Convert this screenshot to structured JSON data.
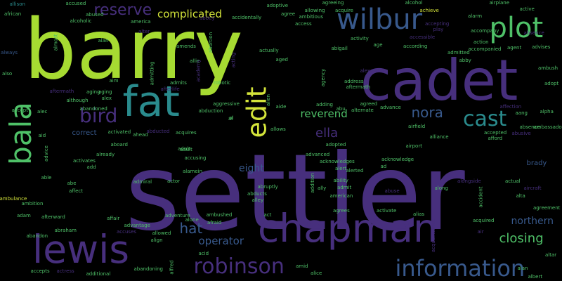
{
  "colors": {
    "background": "#000000",
    "lime": "#a6db32",
    "green": "#4fc168",
    "teal": "#2a8b8d",
    "blue": "#38598c",
    "purple": "#472f7d",
    "darkpurple": "#41205a",
    "yellow": "#d3e33a"
  },
  "words": [
    {
      "text": "barry",
      "color": "lime"
    },
    {
      "text": "settler",
      "color": "purple"
    },
    {
      "text": "cadet",
      "color": "purple"
    },
    {
      "text": "chapman",
      "color": "purple"
    },
    {
      "text": "lewis",
      "color": "purple"
    },
    {
      "text": "fat",
      "color": "teal"
    },
    {
      "text": "bala",
      "color": "green"
    },
    {
      "text": "wilbur",
      "color": "blue"
    },
    {
      "text": "plot",
      "color": "green"
    },
    {
      "text": "robinson",
      "color": "purple"
    },
    {
      "text": "information",
      "color": "blue"
    },
    {
      "text": "cast",
      "color": "teal"
    },
    {
      "text": "edit",
      "color": "yellow"
    },
    {
      "text": "bird",
      "color": "purple"
    },
    {
      "text": "reserve",
      "color": "purple"
    },
    {
      "text": "complicated",
      "color": "yellow"
    },
    {
      "text": "hat",
      "color": "blue"
    },
    {
      "text": "closing",
      "color": "green"
    },
    {
      "text": "nora",
      "color": "blue"
    },
    {
      "text": "ella",
      "color": "purple"
    },
    {
      "text": "reverend",
      "color": "green"
    },
    {
      "text": "operator",
      "color": "blue"
    },
    {
      "text": "northern",
      "color": "blue"
    },
    {
      "text": "eight",
      "color": "blue"
    },
    {
      "text": "brady",
      "color": "blue"
    },
    {
      "text": "allison",
      "color": "teal"
    },
    {
      "text": "african",
      "color": "green"
    },
    {
      "text": "accused",
      "color": "green"
    },
    {
      "text": "abused",
      "color": "green"
    },
    {
      "text": "alcoholic",
      "color": "green"
    },
    {
      "text": "alan",
      "color": "green"
    },
    {
      "text": "almost",
      "color": "green"
    },
    {
      "text": "always",
      "color": "blue"
    },
    {
      "text": "also",
      "color": "green"
    },
    {
      "text": "america",
      "color": "green"
    },
    {
      "text": "alter",
      "color": "purple"
    },
    {
      "text": "amends",
      "color": "green"
    },
    {
      "text": "allie",
      "color": "green"
    },
    {
      "text": "admitting",
      "color": "green"
    },
    {
      "text": "admits",
      "color": "green"
    },
    {
      "text": "academy",
      "color": "purple"
    },
    {
      "text": "abbey",
      "color": "purple"
    },
    {
      "text": "accidentally",
      "color": "green"
    },
    {
      "text": "abortion",
      "color": "green"
    },
    {
      "text": "acting",
      "color": "purple"
    },
    {
      "text": "actually",
      "color": "green"
    },
    {
      "text": "aged",
      "color": "green"
    },
    {
      "text": "adoptive",
      "color": "green"
    },
    {
      "text": "agree",
      "color": "green"
    },
    {
      "text": "allowing",
      "color": "green"
    },
    {
      "text": "ambitious",
      "color": "green"
    },
    {
      "text": "agreeing",
      "color": "green"
    },
    {
      "text": "acquire",
      "color": "green"
    },
    {
      "text": "access",
      "color": "green"
    },
    {
      "text": "abigail",
      "color": "green"
    },
    {
      "text": "activity",
      "color": "green"
    },
    {
      "text": "age",
      "color": "green"
    },
    {
      "text": "alcohol",
      "color": "green"
    },
    {
      "text": "achieve",
      "color": "yellow"
    },
    {
      "text": "accepting",
      "color": "purple"
    },
    {
      "text": "play",
      "color": "purple"
    },
    {
      "text": "alarm",
      "color": "green"
    },
    {
      "text": "airplane",
      "color": "green"
    },
    {
      "text": "active",
      "color": "green"
    },
    {
      "text": "accompany",
      "color": "green"
    },
    {
      "text": "absence",
      "color": "purple"
    },
    {
      "text": "according",
      "color": "green"
    },
    {
      "text": "admitted",
      "color": "green"
    },
    {
      "text": "action",
      "color": "green"
    },
    {
      "text": "accompanied",
      "color": "green"
    },
    {
      "text": "agent",
      "color": "green"
    },
    {
      "text": "advises",
      "color": "green"
    },
    {
      "text": "abby",
      "color": "green"
    },
    {
      "text": "ambush",
      "color": "green"
    },
    {
      "text": "adopt",
      "color": "green"
    },
    {
      "text": "afterlife",
      "color": "purple"
    },
    {
      "text": "aim",
      "color": "green"
    },
    {
      "text": "aftermath",
      "color": "purple"
    },
    {
      "text": "aging",
      "color": "green"
    },
    {
      "text": "alex",
      "color": "green"
    },
    {
      "text": "although",
      "color": "green"
    },
    {
      "text": "abandoned",
      "color": "green"
    },
    {
      "text": "accept",
      "color": "green"
    },
    {
      "text": "alec",
      "color": "green"
    },
    {
      "text": "aid",
      "color": "green"
    },
    {
      "text": "correct",
      "color": "blue"
    },
    {
      "text": "activated",
      "color": "green"
    },
    {
      "text": "ahead",
      "color": "green"
    },
    {
      "text": "abducted",
      "color": "purple"
    },
    {
      "text": "acquires",
      "color": "green"
    },
    {
      "text": "aboard",
      "color": "green"
    },
    {
      "text": "already",
      "color": "green"
    },
    {
      "text": "advice",
      "color": "green"
    },
    {
      "text": "able",
      "color": "green"
    },
    {
      "text": "activates",
      "color": "green"
    },
    {
      "text": "add",
      "color": "green"
    },
    {
      "text": "adult",
      "color": "green"
    },
    {
      "text": "accusing",
      "color": "green"
    },
    {
      "text": "alamein",
      "color": "green"
    },
    {
      "text": "abe",
      "color": "green"
    },
    {
      "text": "affect",
      "color": "green"
    },
    {
      "text": "admiral",
      "color": "green"
    },
    {
      "text": "actor",
      "color": "green"
    },
    {
      "text": "ambulance",
      "color": "yellow"
    },
    {
      "text": "ambition",
      "color": "green"
    },
    {
      "text": "adam",
      "color": "green"
    },
    {
      "text": "afterward",
      "color": "green"
    },
    {
      "text": "affair",
      "color": "green"
    },
    {
      "text": "advantage",
      "color": "green"
    },
    {
      "text": "accuses",
      "color": "purple"
    },
    {
      "text": "allowed",
      "color": "green"
    },
    {
      "text": "align",
      "color": "green"
    },
    {
      "text": "abraham",
      "color": "green"
    },
    {
      "text": "abandon",
      "color": "green"
    },
    {
      "text": "accepts",
      "color": "green"
    },
    {
      "text": "actress",
      "color": "purple"
    },
    {
      "text": "additional",
      "color": "green"
    },
    {
      "text": "abandoning",
      "color": "green"
    },
    {
      "text": "alfred",
      "color": "green"
    },
    {
      "text": "acid",
      "color": "green"
    },
    {
      "text": "alone",
      "color": "green"
    },
    {
      "text": "ambushed",
      "color": "green"
    },
    {
      "text": "afraid",
      "color": "green"
    },
    {
      "text": "adventure",
      "color": "green"
    },
    {
      "text": "robotic",
      "color": "green"
    },
    {
      "text": "abduction",
      "color": "green"
    },
    {
      "text": "aggressive",
      "color": "green"
    },
    {
      "text": "al",
      "color": "green"
    },
    {
      "text": "alien",
      "color": "green"
    },
    {
      "text": "aide",
      "color": "green"
    },
    {
      "text": "adding",
      "color": "green"
    },
    {
      "text": "allows",
      "color": "green"
    },
    {
      "text": "alternate",
      "color": "green"
    },
    {
      "text": "agreed",
      "color": "green"
    },
    {
      "text": "advance",
      "color": "green"
    },
    {
      "text": "abu",
      "color": "green"
    },
    {
      "text": "address",
      "color": "green"
    },
    {
      "text": "aftermath",
      "color": "green"
    },
    {
      "text": "agency",
      "color": "green"
    },
    {
      "text": "alexander",
      "color": "purple"
    },
    {
      "text": "advanced",
      "color": "green"
    },
    {
      "text": "acknowledges",
      "color": "green"
    },
    {
      "text": "adopted",
      "color": "green"
    },
    {
      "text": "alert",
      "color": "green"
    },
    {
      "text": "alerted",
      "color": "green"
    },
    {
      "text": "ad",
      "color": "green"
    },
    {
      "text": "acknowledge",
      "color": "green"
    },
    {
      "text": "addition",
      "color": "green"
    },
    {
      "text": "ability",
      "color": "green"
    },
    {
      "text": "admit",
      "color": "green"
    },
    {
      "text": "american",
      "color": "green"
    },
    {
      "text": "abruptly",
      "color": "green"
    },
    {
      "text": "abducts",
      "color": "green"
    },
    {
      "text": "alley",
      "color": "green"
    },
    {
      "text": "ally",
      "color": "green"
    },
    {
      "text": "agrees",
      "color": "green"
    },
    {
      "text": "activate",
      "color": "green"
    },
    {
      "text": "act",
      "color": "green"
    },
    {
      "text": "amid",
      "color": "green"
    },
    {
      "text": "alice",
      "color": "green"
    },
    {
      "text": "abuse",
      "color": "purple"
    },
    {
      "text": "airfield",
      "color": "green"
    },
    {
      "text": "airport",
      "color": "green"
    },
    {
      "text": "alliance",
      "color": "green"
    },
    {
      "text": "along",
      "color": "green"
    },
    {
      "text": "alias",
      "color": "green"
    },
    {
      "text": "acquaintance",
      "color": "purple"
    },
    {
      "text": "accident",
      "color": "green"
    },
    {
      "text": "acquired",
      "color": "green"
    },
    {
      "text": "air",
      "color": "purple"
    },
    {
      "text": "alongside",
      "color": "purple"
    },
    {
      "text": "actual",
      "color": "green"
    },
    {
      "text": "aircraft",
      "color": "purple"
    },
    {
      "text": "agreement",
      "color": "green"
    },
    {
      "text": "alpha",
      "color": "green"
    },
    {
      "text": "aang",
      "color": "green"
    },
    {
      "text": "affection",
      "color": "purple"
    },
    {
      "text": "abusive",
      "color": "purple"
    },
    {
      "text": "ambassador",
      "color": "green"
    },
    {
      "text": "absence",
      "color": "green"
    },
    {
      "text": "accepted",
      "color": "green"
    },
    {
      "text": "afford",
      "color": "green"
    },
    {
      "text": "alta",
      "color": "green"
    },
    {
      "text": "altar",
      "color": "green"
    },
    {
      "text": "albert",
      "color": "green"
    },
    {
      "text": "alan",
      "color": "green"
    },
    {
      "text": "accessible",
      "color": "purple"
    },
    {
      "text": "adult",
      "color": "green"
    },
    {
      "text": "al",
      "color": "green"
    },
    {
      "text": "aging",
      "color": "green"
    }
  ]
}
